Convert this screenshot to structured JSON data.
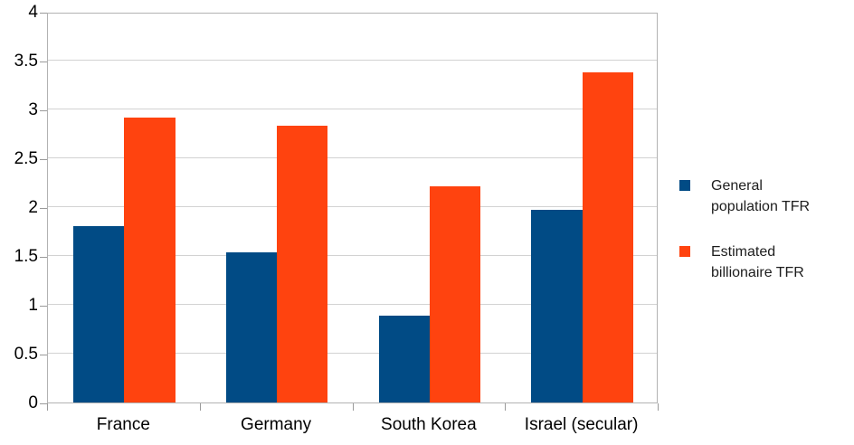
{
  "chart_data": {
    "type": "bar",
    "title": "",
    "xlabel": "",
    "ylabel": "",
    "categories": [
      "France",
      "Germany",
      "South Korea",
      "Israel (secular)"
    ],
    "series": [
      {
        "name": "General population TFR",
        "color": "#014B85",
        "values": [
          1.81,
          1.54,
          0.89,
          1.97
        ]
      },
      {
        "name": "Estimated billionaire TFR",
        "color": "#FF430F",
        "values": [
          2.92,
          2.83,
          2.21,
          3.38
        ]
      }
    ],
    "ylim": [
      0,
      4
    ],
    "ytick_step": 0.5,
    "yticks": [
      "0",
      "0.5",
      "1",
      "1.5",
      "2",
      "2.5",
      "3",
      "3.5",
      "4"
    ],
    "grid": true,
    "legend_position": "right"
  },
  "colors": {
    "grid": "#d2d2d2",
    "axis": "#9a9a9a",
    "plot_border": "#b2b2b2",
    "axis_text": "#000000",
    "legend_text": "#1d1d1d"
  }
}
